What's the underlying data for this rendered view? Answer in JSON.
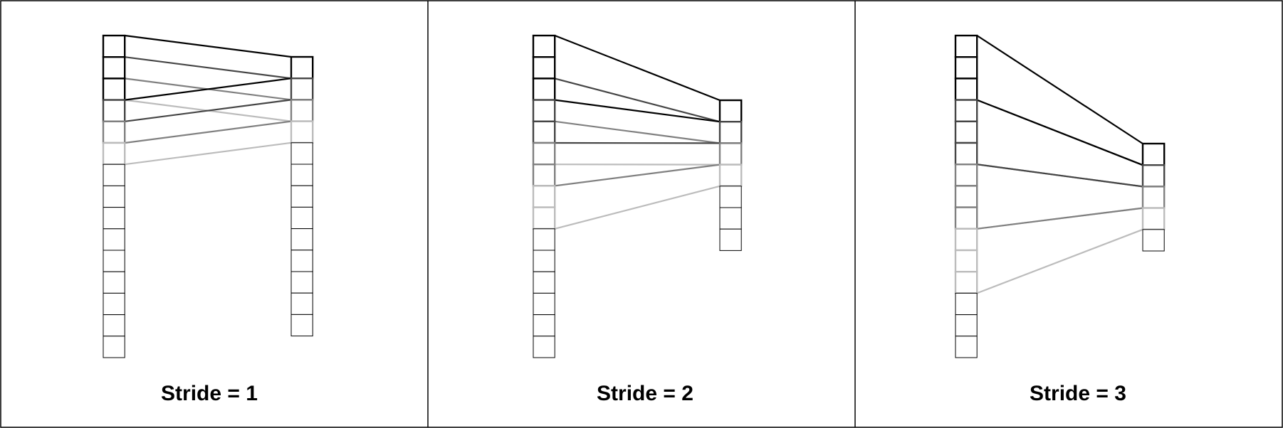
{
  "panels": [
    {
      "label": "Stride = 1",
      "stride": 1,
      "input_cells": 15,
      "output_cells": 13
    },
    {
      "label": "Stride = 2",
      "stride": 2,
      "input_cells": 15,
      "output_cells": 7
    },
    {
      "label": "Stride = 3",
      "stride": 3,
      "input_cells": 15,
      "output_cells": 5
    }
  ],
  "kernel_size": 3,
  "highlighted_outputs": 2,
  "colors": {
    "border": "#000000",
    "cell_stroke": "#000000",
    "output_shades": [
      "#000000",
      "#454545",
      "#808080",
      "#bcbcbc"
    ]
  }
}
